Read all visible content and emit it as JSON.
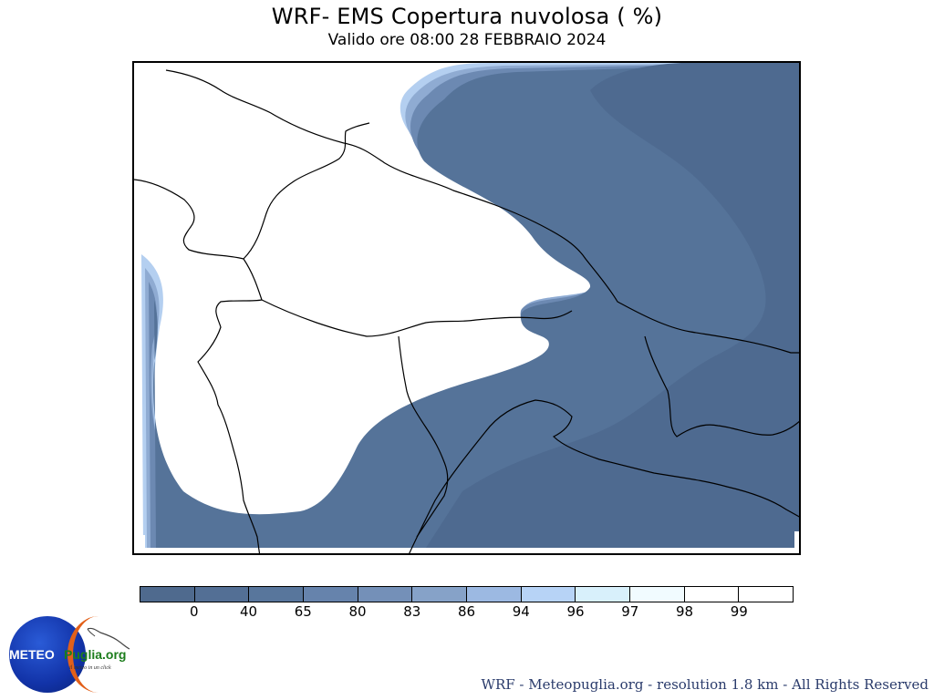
{
  "title": "WRF- EMS Copertura nuvolosa ( %)",
  "subtitle": "Valido ore 08:00 28 FEBBRAIO 2024",
  "legend": {
    "ticks": [
      "0",
      "40",
      "65",
      "80",
      "83",
      "86",
      "94",
      "96",
      "97",
      "98",
      "99"
    ],
    "colors": [
      "#4f6a8e",
      "#536f95",
      "#58769c",
      "#6683ac",
      "#7490b8",
      "#86a2c8",
      "#9cb9e2",
      "#b7d3f6",
      "#d8f0fb",
      "#f1fbff",
      "#ffffff",
      "#ffffff"
    ]
  },
  "map": {
    "cloud_colors": {
      "dense": "#4e6a90",
      "high": "#557399",
      "edge1": "#6c89b2",
      "edge2": "#8fabd2",
      "edge3": "#b4cff0",
      "clear": "#ffffff"
    }
  },
  "logo": {
    "word1": "METEO",
    "word2": "Puglia.org",
    "tagline": "il meteo in un click"
  },
  "footer": "WRF - Meteopuglia.org - resolution 1.8 km - All Rights Reserved"
}
